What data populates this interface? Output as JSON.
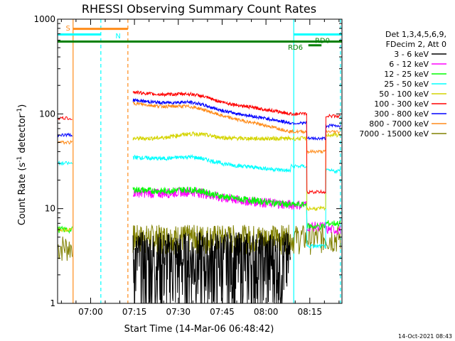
{
  "chart_data": {
    "type": "line",
    "title": "RHESSI Observing Summary Count Rates",
    "xlabel": "Start Time (14-Mar-06 06:48:42)",
    "ylabel_main": "Count Rate (s",
    "ylabel_sup1": "-1",
    "ylabel_mid": " detector",
    "ylabel_sup2": "-1",
    "ylabel_end": ")",
    "y_scale": "log",
    "ylim": [
      1,
      1000
    ],
    "xlim": [
      "06:48:42",
      "08:26:00"
    ],
    "x_ticks": [
      "07:00",
      "07:15",
      "07:30",
      "07:45",
      "08:00",
      "08:15"
    ],
    "y_ticks": [
      "1",
      "10",
      "100",
      "1000"
    ],
    "legend_header": [
      "Det 1,3,4,5,6,9,",
      "FDecim 2, Att 0"
    ],
    "series": [
      {
        "name": "3 - 6 keV",
        "color": "#000000"
      },
      {
        "name": "6 - 12 keV",
        "color": "#ff00ff"
      },
      {
        "name": "12 - 25 keV",
        "color": "#00ff00"
      },
      {
        "name": "25 - 50 keV",
        "color": "#00ffff"
      },
      {
        "name": "50 - 100 keV",
        "color": "#d4d400"
      },
      {
        "name": "100 - 300 keV",
        "color": "#ff0000"
      },
      {
        "name": "300 - 800 keV",
        "color": "#0000ff"
      },
      {
        "name": "800 - 7000 keV",
        "color": "#ff8c1a"
      },
      {
        "name": "7000 - 15000 keV",
        "color": "#808000"
      }
    ],
    "flag_labels": {
      "s": "S",
      "n": "N",
      "rd0": "RD0",
      "rd6": "RD6"
    },
    "flag_colors": {
      "s": "#ff8c1a",
      "n": "#00ffff",
      "rd": "#008000"
    },
    "timestamp": "14-Oct-2021 08:43"
  }
}
